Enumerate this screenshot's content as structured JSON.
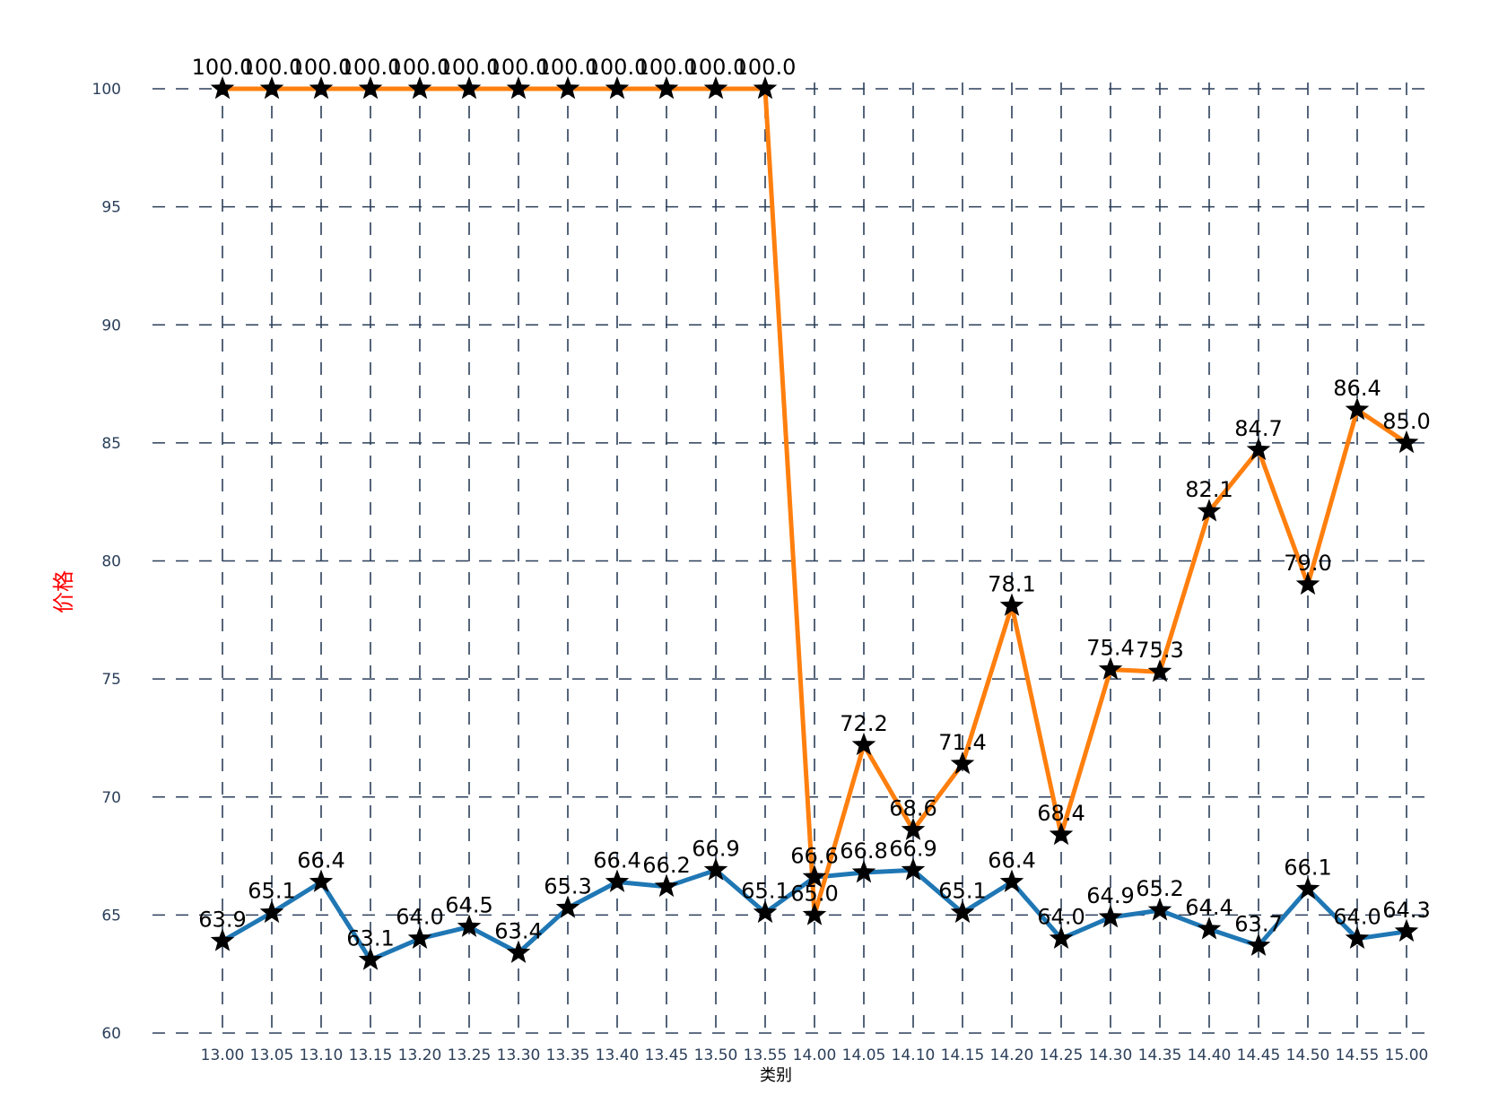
{
  "chart_data": {
    "type": "line",
    "title": "",
    "xlabel": "类别",
    "ylabel": "价格",
    "ylim": [
      60,
      100
    ],
    "yticks": [
      60,
      65,
      70,
      75,
      80,
      85,
      90,
      95,
      100
    ],
    "grid": true,
    "legend": "none",
    "categories": [
      "13.00",
      "13.05",
      "13.10",
      "13.15",
      "13.20",
      "13.25",
      "13.30",
      "13.35",
      "13.40",
      "13.45",
      "13.50",
      "13.55",
      "14.00",
      "14.05",
      "14.10",
      "14.15",
      "14.20",
      "14.25",
      "14.30",
      "14.35",
      "14.40",
      "14.45",
      "14.50",
      "14.55",
      "15.00"
    ],
    "series": [
      {
        "color": "#1f77b4",
        "values": [
          63.9,
          65.1,
          66.4,
          63.1,
          64.0,
          64.5,
          63.4,
          65.3,
          66.4,
          66.2,
          66.9,
          65.1,
          66.6,
          66.8,
          66.9,
          65.1,
          66.4,
          64.0,
          64.9,
          65.2,
          64.4,
          63.7,
          66.1,
          64.0,
          64.3
        ]
      },
      {
        "color": "#ff7f0e",
        "values": [
          100.0,
          100.0,
          100.0,
          100.0,
          100.0,
          100.0,
          100.0,
          100.0,
          100.0,
          100.0,
          100.0,
          100.0,
          65.0,
          72.2,
          68.6,
          71.4,
          78.1,
          68.4,
          75.4,
          75.3,
          82.1,
          84.7,
          79.0,
          86.4,
          85.0
        ]
      }
    ],
    "colors": {
      "grid": "#2b3f5a",
      "tick_text": "#2b3f5a",
      "ylabel": "#ff0000",
      "xlabel": "#000000",
      "marker": "#000000"
    }
  }
}
